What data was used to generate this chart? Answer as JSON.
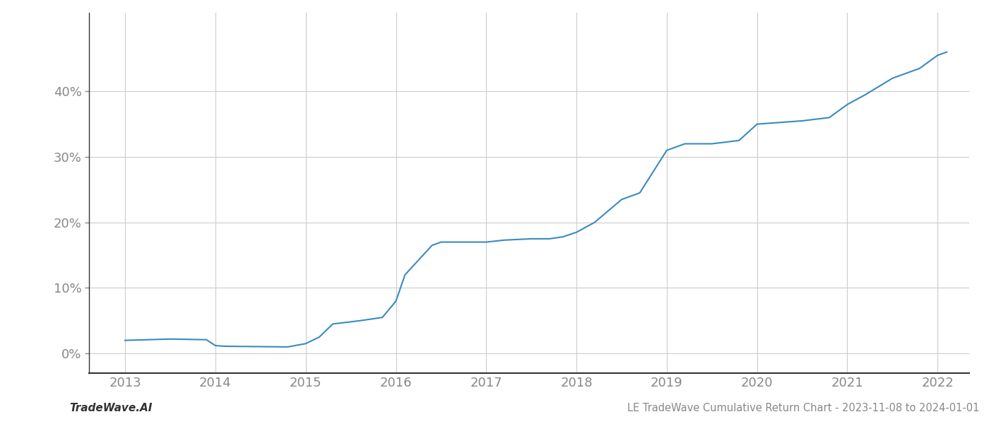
{
  "x": [
    2013.0,
    2013.5,
    2013.9,
    2014.0,
    2014.1,
    2014.8,
    2015.0,
    2015.15,
    2015.3,
    2015.6,
    2015.85,
    2016.0,
    2016.1,
    2016.4,
    2016.5,
    2016.8,
    2017.0,
    2017.2,
    2017.5,
    2017.7,
    2017.85,
    2018.0,
    2018.2,
    2018.5,
    2018.7,
    2019.0,
    2019.1,
    2019.2,
    2019.5,
    2019.8,
    2020.0,
    2020.2,
    2020.5,
    2020.8,
    2021.0,
    2021.2,
    2021.5,
    2021.8,
    2022.0,
    2022.1
  ],
  "y": [
    2.0,
    2.2,
    2.1,
    1.2,
    1.1,
    1.0,
    1.5,
    2.5,
    4.5,
    5.0,
    5.5,
    8.0,
    12.0,
    16.5,
    17.0,
    17.0,
    17.0,
    17.3,
    17.5,
    17.5,
    17.8,
    18.5,
    20.0,
    23.5,
    24.5,
    31.0,
    31.5,
    32.0,
    32.0,
    32.5,
    35.0,
    35.2,
    35.5,
    36.0,
    38.0,
    39.5,
    42.0,
    43.5,
    45.5,
    46.0
  ],
  "line_color": "#3a8abf",
  "line_width": 1.5,
  "background_color": "#ffffff",
  "grid_color": "#cccccc",
  "tick_color": "#888888",
  "spine_color": "#333333",
  "title": "LE TradeWave Cumulative Return Chart - 2023-11-08 to 2024-01-01",
  "watermark": "TradeWave.AI",
  "xlim": [
    2012.6,
    2022.35
  ],
  "ylim": [
    -3,
    52
  ],
  "yticks": [
    0,
    10,
    20,
    30,
    40
  ],
  "xticks": [
    2013,
    2014,
    2015,
    2016,
    2017,
    2018,
    2019,
    2020,
    2021,
    2022
  ],
  "title_fontsize": 10.5,
  "watermark_fontsize": 11,
  "tick_fontsize": 13
}
